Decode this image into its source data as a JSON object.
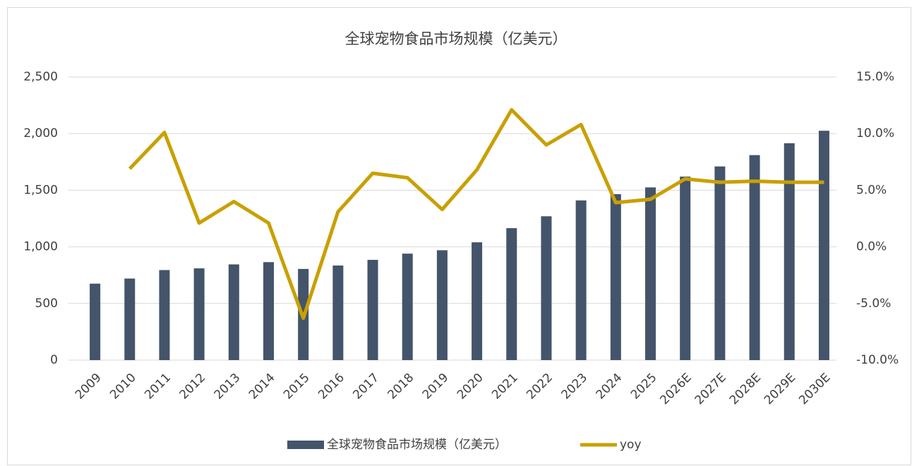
{
  "chart_data": {
    "type": "bar_line",
    "title": "全球宠物食品市场规模（亿美元）",
    "categories": [
      "2009",
      "2010",
      "2011",
      "2012",
      "2013",
      "2014",
      "2015",
      "2016",
      "2017",
      "2018",
      "2019",
      "2020",
      "2021",
      "2022",
      "2023",
      "2024",
      "2025",
      "2026E",
      "2027E",
      "2028E",
      "2029E",
      "2030E"
    ],
    "series": [
      {
        "name": "全球宠物食品市场规模（亿美元）",
        "type": "bar",
        "color": "#44546a",
        "values": [
          675,
          720,
          795,
          810,
          845,
          865,
          805,
          835,
          885,
          940,
          970,
          1040,
          1165,
          1270,
          1410,
          1465,
          1525,
          1620,
          1710,
          1810,
          1915,
          2025
        ]
      },
      {
        "name": "yoy",
        "type": "line",
        "axis": "y2",
        "color": "#c9a000",
        "values": [
          null,
          6.9,
          10.1,
          2.1,
          4.0,
          2.1,
          -6.3,
          3.1,
          6.5,
          6.1,
          3.3,
          6.8,
          12.1,
          9.0,
          10.8,
          3.9,
          4.2,
          6.0,
          5.7,
          5.8,
          5.7,
          5.7
        ]
      }
    ],
    "ylim": [
      0,
      2500
    ],
    "yticks": [
      0,
      500,
      {
        "value": 1000,
        "label": "1,000"
      },
      {
        "value": 1500,
        "label": "1,500"
      },
      {
        "value": 2000,
        "label": "2,000"
      },
      {
        "value": 2500,
        "label": "2,500"
      }
    ],
    "y2lim": [
      -10,
      15
    ],
    "y2ticks": [
      {
        "value": -10,
        "label": "-10.0%"
      },
      {
        "value": -5,
        "label": "-5.0%"
      },
      {
        "value": 0,
        "label": "0.0%"
      },
      {
        "value": 5,
        "label": "5.0%"
      },
      {
        "value": 10,
        "label": "10.0%"
      },
      {
        "value": 15,
        "label": "15.0%"
      }
    ],
    "grid": true,
    "legend": "bottom"
  }
}
